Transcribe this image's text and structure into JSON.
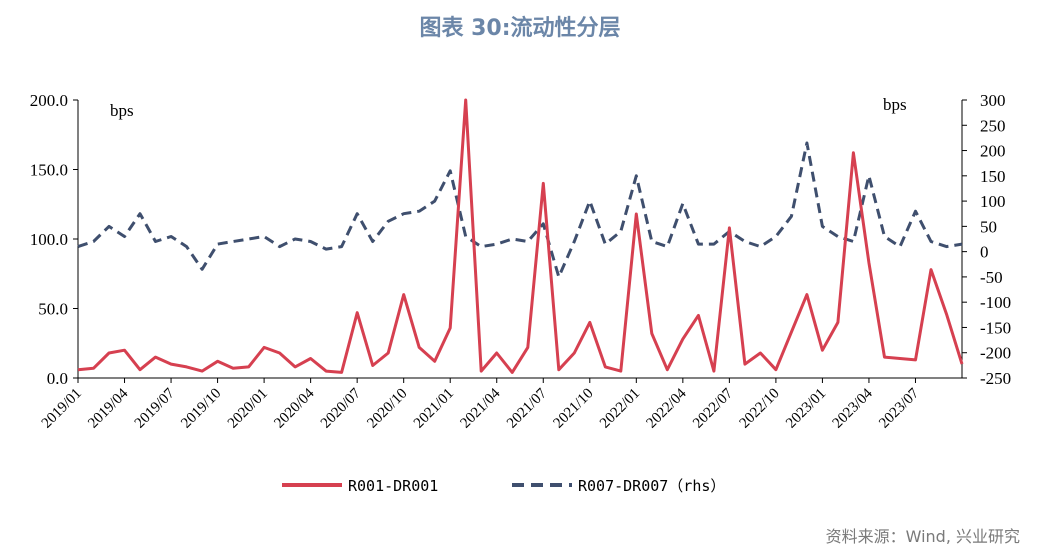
{
  "title": "图表 30:流动性分层",
  "source": "资料来源：Wind, 兴业研究",
  "colors": {
    "series1": "#d64050",
    "series2": "#3f4f6e"
  },
  "chart_data": {
    "type": "line",
    "left_unit": "bps",
    "right_unit": "bps",
    "left_axis": {
      "ylim": [
        0,
        200
      ],
      "ticks": [
        "0.0",
        "50.0",
        "100.0",
        "150.0",
        "200.0"
      ]
    },
    "right_axis": {
      "ylim": [
        -250,
        300
      ],
      "ticks": [
        "-250",
        "-200",
        "-150",
        "-100",
        "-50",
        "0",
        "50",
        "100",
        "150",
        "200",
        "250",
        "300"
      ]
    },
    "x_ticks": [
      "2019/01",
      "2019/04",
      "2019/07",
      "2019/10",
      "2020/01",
      "2020/04",
      "2020/07",
      "2020/10",
      "2021/01",
      "2021/04",
      "2021/07",
      "2021/10",
      "2022/01",
      "2022/04",
      "2022/07",
      "2022/10",
      "2023/01",
      "2023/04",
      "2023/07"
    ],
    "x_range": [
      "2019/01",
      "2023/10"
    ],
    "series": [
      {
        "name": "R001-DR001",
        "axis": "left",
        "style": "solid",
        "x": [
          "2019/01",
          "2019/02",
          "2019/03",
          "2019/04",
          "2019/05",
          "2019/06",
          "2019/07",
          "2019/08",
          "2019/09",
          "2019/10",
          "2019/11",
          "2019/12",
          "2020/01",
          "2020/02",
          "2020/03",
          "2020/04",
          "2020/05",
          "2020/06",
          "2020/07",
          "2020/08",
          "2020/09",
          "2020/10",
          "2020/11",
          "2020/12",
          "2021/01",
          "2021/02",
          "2021/03",
          "2021/04",
          "2021/05",
          "2021/06",
          "2021/07",
          "2021/08",
          "2021/09",
          "2021/10",
          "2021/11",
          "2021/12",
          "2022/01",
          "2022/02",
          "2022/03",
          "2022/04",
          "2022/05",
          "2022/06",
          "2022/07",
          "2022/08",
          "2022/09",
          "2022/10",
          "2022/11",
          "2022/12",
          "2023/01",
          "2023/02",
          "2023/03",
          "2023/04",
          "2023/05",
          "2023/06",
          "2023/07",
          "2023/08",
          "2023/09",
          "2023/10"
        ],
        "values": [
          6,
          7,
          18,
          20,
          6,
          15,
          10,
          8,
          5,
          12,
          7,
          8,
          22,
          18,
          8,
          14,
          5,
          4,
          47,
          9,
          18,
          60,
          22,
          12,
          36,
          200,
          5,
          18,
          4,
          22,
          140,
          6,
          18,
          40,
          8,
          5,
          118,
          32,
          6,
          28,
          45,
          5,
          108,
          10,
          18,
          6,
          33,
          60,
          20,
          40,
          162,
          83,
          15,
          14,
          13,
          78,
          46,
          10
        ]
      },
      {
        "name": "R007-DR007（rhs）",
        "axis": "right",
        "style": "dashed",
        "x": [
          "2019/01",
          "2019/02",
          "2019/03",
          "2019/04",
          "2019/05",
          "2019/06",
          "2019/07",
          "2019/08",
          "2019/09",
          "2019/10",
          "2019/11",
          "2019/12",
          "2020/01",
          "2020/02",
          "2020/03",
          "2020/04",
          "2020/05",
          "2020/06",
          "2020/07",
          "2020/08",
          "2020/09",
          "2020/10",
          "2020/11",
          "2020/12",
          "2021/01",
          "2021/02",
          "2021/03",
          "2021/04",
          "2021/05",
          "2021/06",
          "2021/07",
          "2021/08",
          "2021/09",
          "2021/10",
          "2021/11",
          "2021/12",
          "2022/01",
          "2022/02",
          "2022/03",
          "2022/04",
          "2022/05",
          "2022/06",
          "2022/07",
          "2022/08",
          "2022/09",
          "2022/10",
          "2022/11",
          "2022/12",
          "2023/01",
          "2023/02",
          "2023/03",
          "2023/04",
          "2023/05",
          "2023/06",
          "2023/07",
          "2023/08",
          "2023/09",
          "2023/10"
        ],
        "values": [
          10,
          20,
          50,
          30,
          75,
          20,
          30,
          10,
          -35,
          15,
          20,
          25,
          30,
          10,
          25,
          20,
          5,
          10,
          75,
          20,
          60,
          75,
          80,
          100,
          160,
          30,
          10,
          15,
          25,
          20,
          55,
          -50,
          20,
          100,
          15,
          40,
          150,
          20,
          10,
          95,
          15,
          15,
          40,
          20,
          10,
          30,
          70,
          215,
          50,
          30,
          20,
          150,
          30,
          10,
          80,
          20,
          10,
          15
        ]
      }
    ]
  }
}
